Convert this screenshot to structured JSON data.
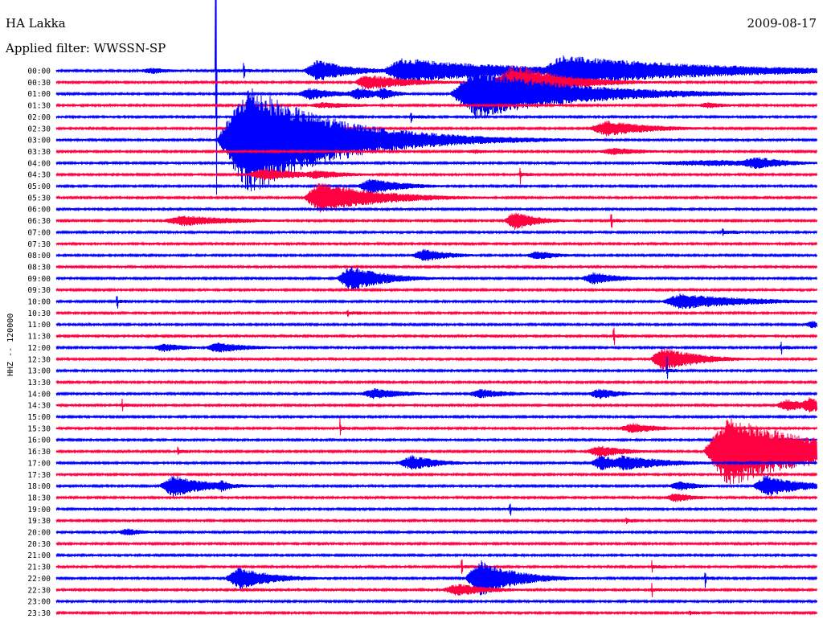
{
  "header": {
    "station": "HA Lakka",
    "date": "2009-08-17",
    "filter_label": "Applied filter: WWSSN-SP"
  },
  "chart_data": {
    "type": "line",
    "title": "HA Lakka",
    "subtitle": "Applied filter: WWSSN-SP",
    "date": "2009-08-17",
    "ylabel": "HHZ -- 120000",
    "xlabel": "",
    "grid": false,
    "trace_colors": [
      "#0000ff",
      "#ff0040"
    ],
    "line_interval_minutes": 30,
    "minutes_axis": [
      0,
      30
    ],
    "tick_labels": [
      "00:00",
      "00:30",
      "01:00",
      "01:30",
      "02:00",
      "02:30",
      "03:00",
      "03:30",
      "04:00",
      "04:30",
      "05:00",
      "05:30",
      "06:00",
      "06:30",
      "07:00",
      "07:30",
      "08:00",
      "08:30",
      "09:00",
      "09:30",
      "10:00",
      "10:30",
      "11:00",
      "11:30",
      "12:00",
      "12:30",
      "13:00",
      "13:30",
      "14:00",
      "14:30",
      "15:00",
      "15:30",
      "16:00",
      "16:30",
      "17:00",
      "17:30",
      "18:00",
      "18:30",
      "19:00",
      "19:30",
      "20:00",
      "20:30",
      "21:00",
      "21:30",
      "22:00",
      "22:30",
      "23:00",
      "23:30"
    ],
    "events": [
      {
        "line": "00:00",
        "minute": 3.0,
        "amp": 4,
        "up": 0.8,
        "dur": 1.0
      },
      {
        "line": "00:00",
        "minute": 6.3,
        "amp": 220,
        "up": 2.3,
        "dur": 0.6,
        "spike": true
      },
      {
        "line": "00:00",
        "minute": 7.4,
        "amp": 14,
        "up": 0.6,
        "dur": 0.4,
        "spike": true
      },
      {
        "line": "00:00",
        "minute": 9.7,
        "amp": 14,
        "up": 0.6,
        "dur": 1.5
      },
      {
        "line": "00:00",
        "minute": 12.8,
        "amp": 16,
        "up": 0.8,
        "dur": 5.0
      },
      {
        "line": "00:00",
        "minute": 19.1,
        "amp": 20,
        "up": 0.8,
        "dur": 6.0
      },
      {
        "line": "00:30",
        "minute": 11.7,
        "amp": 10,
        "up": 0.5,
        "dur": 2.0
      },
      {
        "line": "00:30",
        "minute": 17.1,
        "amp": 24,
        "up": 1.0,
        "dur": 2.0
      },
      {
        "line": "01:00",
        "minute": 9.4,
        "amp": 8,
        "up": 0.6,
        "dur": 1.2
      },
      {
        "line": "01:00",
        "minute": 11.3,
        "amp": 8,
        "up": 0.6,
        "dur": 1.0
      },
      {
        "line": "01:00",
        "minute": 12.3,
        "amp": 8,
        "up": 0.6,
        "dur": 0.6
      },
      {
        "line": "01:00",
        "minute": 15.5,
        "amp": 32,
        "up": 1.0,
        "dur": 4.0
      },
      {
        "line": "01:30",
        "minute": 9.7,
        "amp": 4,
        "up": 0.8,
        "dur": 2.0
      },
      {
        "line": "01:30",
        "minute": 25.1,
        "amp": 4,
        "up": 0.6,
        "dur": 1.0
      },
      {
        "line": "02:00",
        "minute": 14.0,
        "amp": 12,
        "up": 0.4,
        "dur": 0.6,
        "spike": true
      },
      {
        "line": "02:30",
        "minute": 20.9,
        "amp": 10,
        "up": 0.8,
        "dur": 2.0
      },
      {
        "line": "03:00",
        "minute": 6.3,
        "amp": 70,
        "up": 1.3,
        "dur": 3.5
      },
      {
        "line": "03:30",
        "minute": 15.9,
        "amp": 3,
        "up": 0.6,
        "dur": 1.0
      },
      {
        "line": "03:30",
        "minute": 21.2,
        "amp": 5,
        "up": 0.8,
        "dur": 1.5
      },
      {
        "line": "04:00",
        "minute": 21.8,
        "amp": 4,
        "up": 4.0,
        "dur": 5.0
      },
      {
        "line": "04:00",
        "minute": 26.6,
        "amp": 8,
        "up": 1.0,
        "dur": 1.5
      },
      {
        "line": "04:30",
        "minute": 7.4,
        "amp": 8,
        "up": 0.8,
        "dur": 2.0
      },
      {
        "line": "04:30",
        "minute": 9.6,
        "amp": 6,
        "up": 0.6,
        "dur": 1.5
      },
      {
        "line": "04:30",
        "minute": 18.3,
        "amp": 14,
        "up": 0.3,
        "dur": 0.5,
        "spike": true
      },
      {
        "line": "05:00",
        "minute": 11.8,
        "amp": 10,
        "up": 0.6,
        "dur": 1.5
      },
      {
        "line": "05:30",
        "minute": 9.7,
        "amp": 20,
        "up": 0.7,
        "dur": 2.5
      },
      {
        "line": "06:30",
        "minute": 4.0,
        "amp": 7,
        "up": 1.0,
        "dur": 2.5
      },
      {
        "line": "06:30",
        "minute": 17.6,
        "amp": 12,
        "up": 0.5,
        "dur": 1.0
      },
      {
        "line": "06:30",
        "minute": 21.9,
        "amp": 14,
        "up": 0.3,
        "dur": 0.4,
        "spike": true
      },
      {
        "line": "07:00",
        "minute": 26.3,
        "amp": 8,
        "up": 0.4,
        "dur": 0.6,
        "spike": true
      },
      {
        "line": "08:00",
        "minute": 13.9,
        "amp": 8,
        "up": 0.6,
        "dur": 1.2
      },
      {
        "line": "08:00",
        "minute": 18.4,
        "amp": 6,
        "up": 0.6,
        "dur": 1.0
      },
      {
        "line": "09:00",
        "minute": 11.0,
        "amp": 16,
        "up": 0.6,
        "dur": 1.5
      },
      {
        "line": "09:00",
        "minute": 20.6,
        "amp": 8,
        "up": 0.6,
        "dur": 1.2
      },
      {
        "line": "10:00",
        "minute": 2.4,
        "amp": 14,
        "up": 0.3,
        "dur": 0.4,
        "spike": true
      },
      {
        "line": "10:00",
        "minute": 23.8,
        "amp": 10,
        "up": 0.8,
        "dur": 3.0
      },
      {
        "line": "10:30",
        "minute": 11.5,
        "amp": 8,
        "up": 0.4,
        "dur": 0.6,
        "spike": true
      },
      {
        "line": "11:00",
        "minute": 29.4,
        "amp": 5,
        "up": 0.4,
        "dur": 0.6
      },
      {
        "line": "11:30",
        "minute": 22.0,
        "amp": 18,
        "up": 0.3,
        "dur": 0.4,
        "spike": true
      },
      {
        "line": "12:00",
        "minute": 3.7,
        "amp": 6,
        "up": 0.5,
        "dur": 1.0
      },
      {
        "line": "12:00",
        "minute": 5.8,
        "amp": 7,
        "up": 0.5,
        "dur": 1.5
      },
      {
        "line": "12:00",
        "minute": 28.6,
        "amp": 10,
        "up": 0.3,
        "dur": 0.4,
        "spike": true
      },
      {
        "line": "12:30",
        "minute": 23.4,
        "amp": 16,
        "up": 0.5,
        "dur": 1.5
      },
      {
        "line": "13:00",
        "minute": 24.1,
        "amp": 18,
        "up": 0.3,
        "dur": 0.4,
        "spike": true
      },
      {
        "line": "14:00",
        "minute": 11.9,
        "amp": 7,
        "up": 0.6,
        "dur": 1.5
      },
      {
        "line": "14:00",
        "minute": 16.1,
        "amp": 6,
        "up": 0.6,
        "dur": 1.5
      },
      {
        "line": "14:00",
        "minute": 20.9,
        "amp": 7,
        "up": 0.5,
        "dur": 1.0
      },
      {
        "line": "14:30",
        "minute": 2.6,
        "amp": 10,
        "up": 0.3,
        "dur": 0.4,
        "spike": true
      },
      {
        "line": "14:30",
        "minute": 28.3,
        "amp": 8,
        "up": 0.5,
        "dur": 1.0
      },
      {
        "line": "14:30",
        "minute": 29.2,
        "amp": 10,
        "up": 0.5,
        "dur": 1.0
      },
      {
        "line": "15:30",
        "minute": 11.2,
        "amp": 14,
        "up": 0.3,
        "dur": 0.4,
        "spike": true
      },
      {
        "line": "15:30",
        "minute": 22.1,
        "amp": 7,
        "up": 0.6,
        "dur": 1.2
      },
      {
        "line": "16:30",
        "minute": 4.8,
        "amp": 8,
        "up": 0.3,
        "dur": 0.4,
        "spike": true
      },
      {
        "line": "16:30",
        "minute": 20.8,
        "amp": 8,
        "up": 0.6,
        "dur": 1.2
      },
      {
        "line": "16:30",
        "minute": 25.5,
        "amp": 45,
        "up": 1.0,
        "dur": 3.5
      },
      {
        "line": "17:00",
        "minute": 13.4,
        "amp": 10,
        "up": 0.6,
        "dur": 1.2
      },
      {
        "line": "17:00",
        "minute": 21.0,
        "amp": 10,
        "up": 0.5,
        "dur": 1.0
      },
      {
        "line": "17:00",
        "minute": 21.7,
        "amp": 10,
        "up": 0.6,
        "dur": 2.0
      },
      {
        "line": "18:00",
        "minute": 4.0,
        "amp": 14,
        "up": 0.6,
        "dur": 1.5
      },
      {
        "line": "18:00",
        "minute": 6.1,
        "amp": 8,
        "up": 0.4,
        "dur": 0.5
      },
      {
        "line": "18:00",
        "minute": 24.0,
        "amp": 6,
        "up": 0.6,
        "dur": 1.0
      },
      {
        "line": "18:00",
        "minute": 27.4,
        "amp": 14,
        "up": 0.6,
        "dur": 1.5
      },
      {
        "line": "18:30",
        "minute": 23.9,
        "amp": 6,
        "up": 0.5,
        "dur": 1.0
      },
      {
        "line": "19:00",
        "minute": 17.9,
        "amp": 14,
        "up": 0.3,
        "dur": 0.4,
        "spike": true
      },
      {
        "line": "19:30",
        "minute": 22.5,
        "amp": 6,
        "up": 0.3,
        "dur": 0.4,
        "spike": true
      },
      {
        "line": "20:00",
        "minute": 2.3,
        "amp": 5,
        "up": 0.5,
        "dur": 0.8
      },
      {
        "line": "21:30",
        "minute": 16.0,
        "amp": 16,
        "up": 0.3,
        "dur": 0.4,
        "spike": true
      },
      {
        "line": "21:30",
        "minute": 23.5,
        "amp": 8,
        "up": 0.3,
        "dur": 0.4,
        "spike": true
      },
      {
        "line": "22:00",
        "minute": 6.6,
        "amp": 14,
        "up": 0.6,
        "dur": 1.5
      },
      {
        "line": "22:00",
        "minute": 16.1,
        "amp": 24,
        "up": 0.6,
        "dur": 1.5
      },
      {
        "line": "22:00",
        "minute": 25.6,
        "amp": 14,
        "up": 0.3,
        "dur": 0.4,
        "spike": true
      },
      {
        "line": "22:30",
        "minute": 15.1,
        "amp": 8,
        "up": 0.7,
        "dur": 1.5
      },
      {
        "line": "22:30",
        "minute": 23.5,
        "amp": 10,
        "up": 0.3,
        "dur": 0.4,
        "spike": true
      },
      {
        "line": "23:30",
        "minute": 25.0,
        "amp": 4,
        "up": 0.3,
        "dur": 0.4,
        "spike": true
      }
    ]
  }
}
